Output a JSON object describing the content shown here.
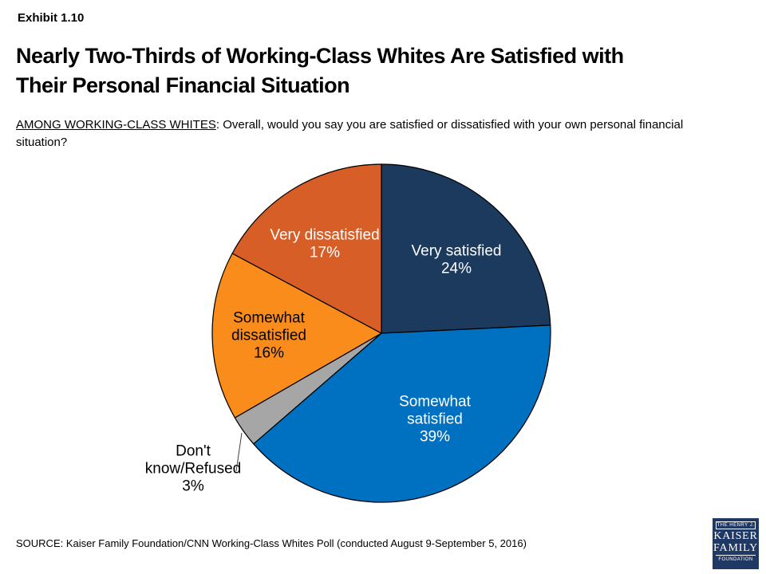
{
  "exhibit_label": "Exhibit 1.10",
  "title_lines": [
    "Nearly Two-Thirds of Working-Class Whites Are Satisfied with",
    "Their Personal Financial Situation"
  ],
  "subtitle": {
    "lead": "AMONG WORKING-CLASS WHITES",
    "rest": ": Overall, would you say you are satisfied or dissatisfied with your own personal financial situation?"
  },
  "chart_data": {
    "type": "pie",
    "title": "Satisfaction with personal financial situation among working-class whites",
    "start_angle_deg": 0,
    "direction": "clockwise",
    "outline_color": "#000000",
    "leader_line_color": "#404040",
    "slices": [
      {
        "label": "Very satisfied",
        "value": 24,
        "display": "24%",
        "color": "#1C3A5E",
        "label_color": "#FFFFFF",
        "label_lines": [
          "Very satisfied",
          "24%"
        ],
        "label_placement": "inside"
      },
      {
        "label": "Somewhat satisfied",
        "value": 39,
        "display": "39%",
        "color": "#0070C0",
        "label_color": "#FFFFFF",
        "label_lines": [
          "Somewhat",
          "satisfied",
          "39%"
        ],
        "label_placement": "inside"
      },
      {
        "label": "Don't know/Refused",
        "value": 3,
        "display": "3%",
        "color": "#A6A6A6",
        "label_color": "#000000",
        "label_lines": [
          "Don't",
          "know/Refused",
          "3%"
        ],
        "label_placement": "outside"
      },
      {
        "label": "Somewhat dissatisfied",
        "value": 16,
        "display": "16%",
        "color": "#F98C1B",
        "label_color": "#000000",
        "label_lines": [
          "Somewhat",
          "dissatisfied",
          "16%"
        ],
        "label_placement": "inside"
      },
      {
        "label": "Very dissatisfied",
        "value": 17,
        "display": "17%",
        "color": "#D85E27",
        "label_color": "#FFFFFF",
        "label_lines": [
          "Very dissatisfied",
          "17%"
        ],
        "label_placement": "inside"
      }
    ]
  },
  "source": "SOURCE: Kaiser Family Foundation/CNN Working-Class Whites Poll (conducted August 9-September 5, 2016)",
  "logo": {
    "the_henry": "THE HENRY J.",
    "kaiser": "KAISER",
    "family": "FAMILY",
    "foundation": "FOUNDATION"
  }
}
